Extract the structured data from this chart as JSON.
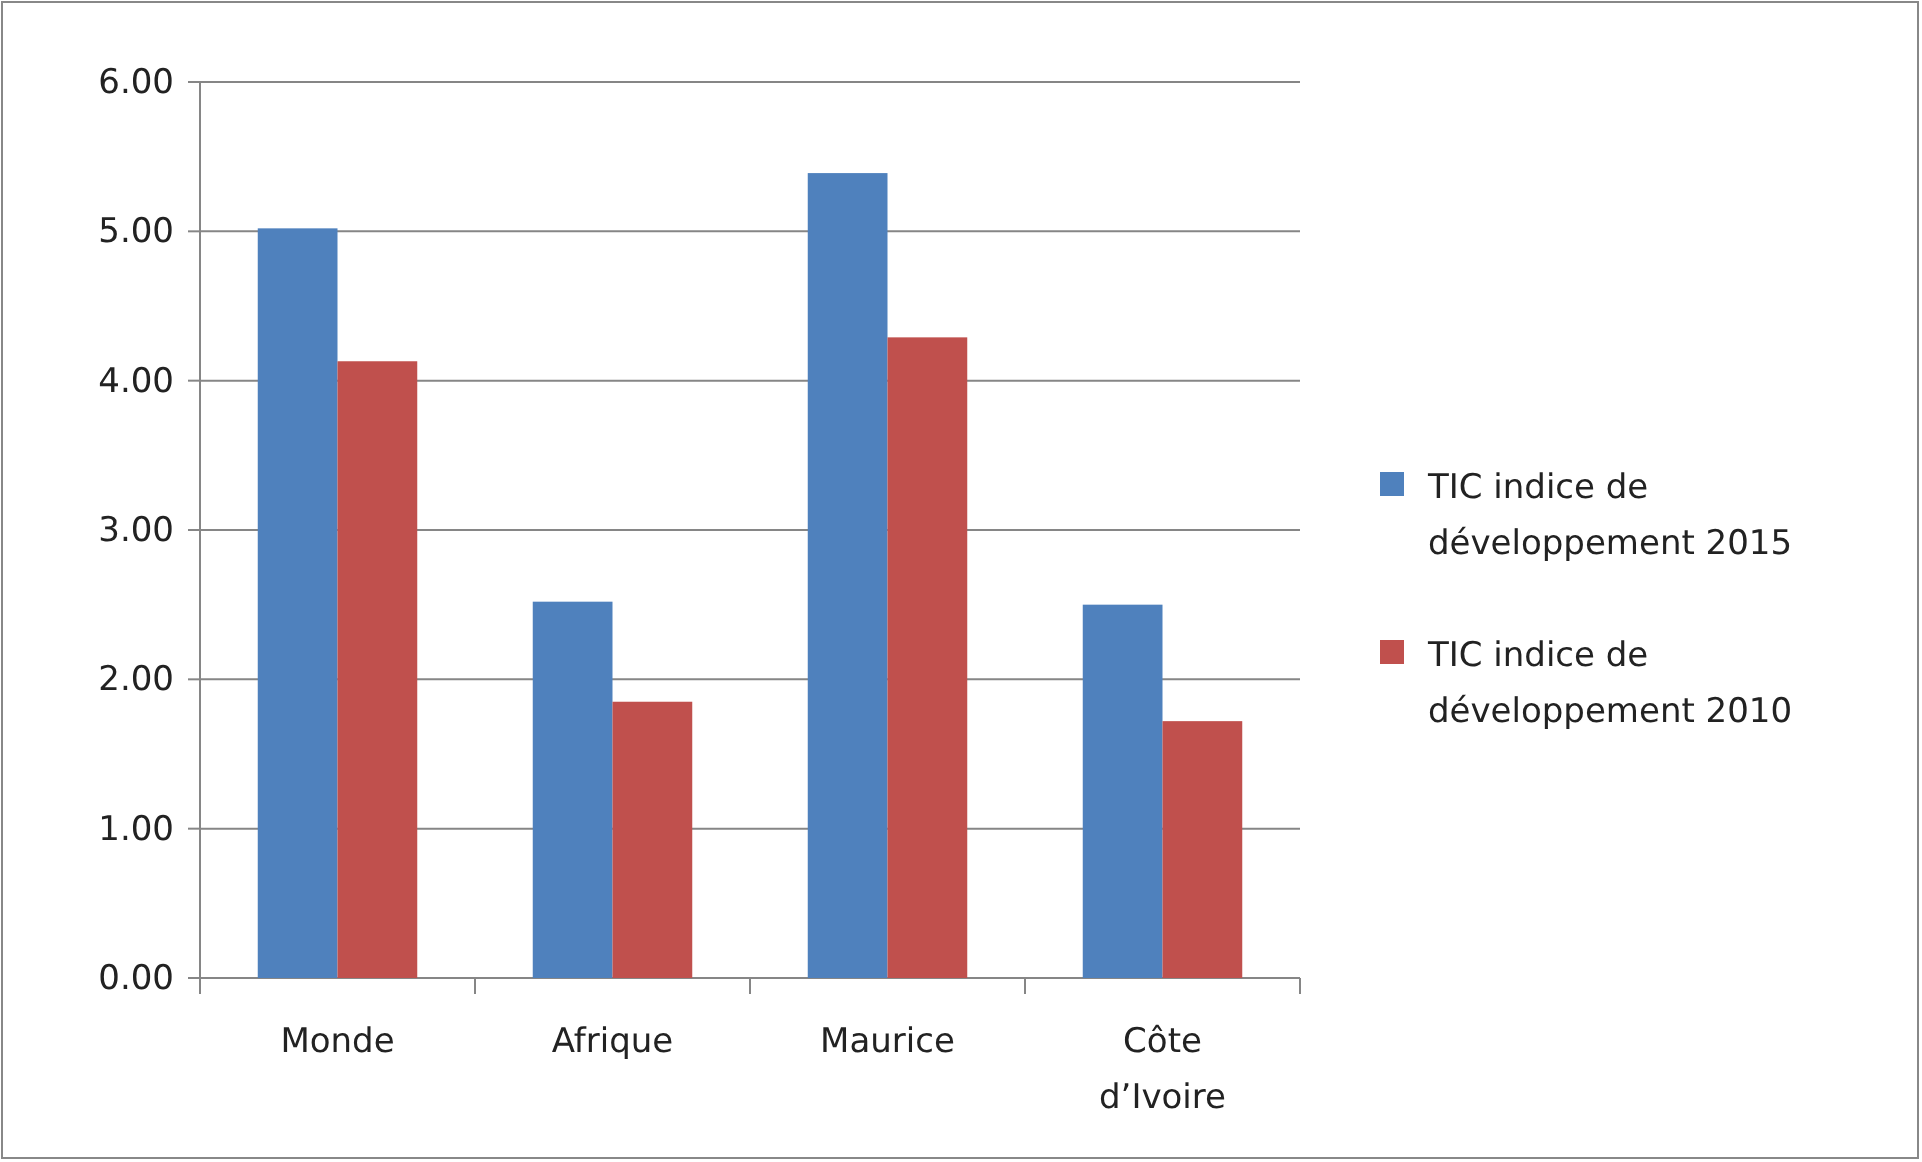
{
  "chart_data": {
    "type": "bar",
    "categories": [
      "Monde",
      "Afrique",
      "Maurice",
      "Côte d’Ivoire"
    ],
    "series": [
      {
        "name": "TIC indice de développement 2015",
        "color": "#4f81bd",
        "values": [
          5.02,
          2.52,
          5.39,
          2.5
        ]
      },
      {
        "name": "TIC indice de développement 2010",
        "color": "#c0504d",
        "values": [
          4.13,
          1.85,
          4.29,
          1.72
        ]
      }
    ],
    "ylim": [
      0,
      6
    ],
    "yticks": [
      {
        "value": 0,
        "label": "0.00"
      },
      {
        "value": 1,
        "label": "1.00"
      },
      {
        "value": 2,
        "label": "2.00"
      },
      {
        "value": 3,
        "label": "3.00"
      },
      {
        "value": 4,
        "label": "4.00"
      },
      {
        "value": 5,
        "label": "5.00"
      },
      {
        "value": 6,
        "label": "6.00"
      }
    ],
    "grid": "y",
    "legend": "right"
  }
}
